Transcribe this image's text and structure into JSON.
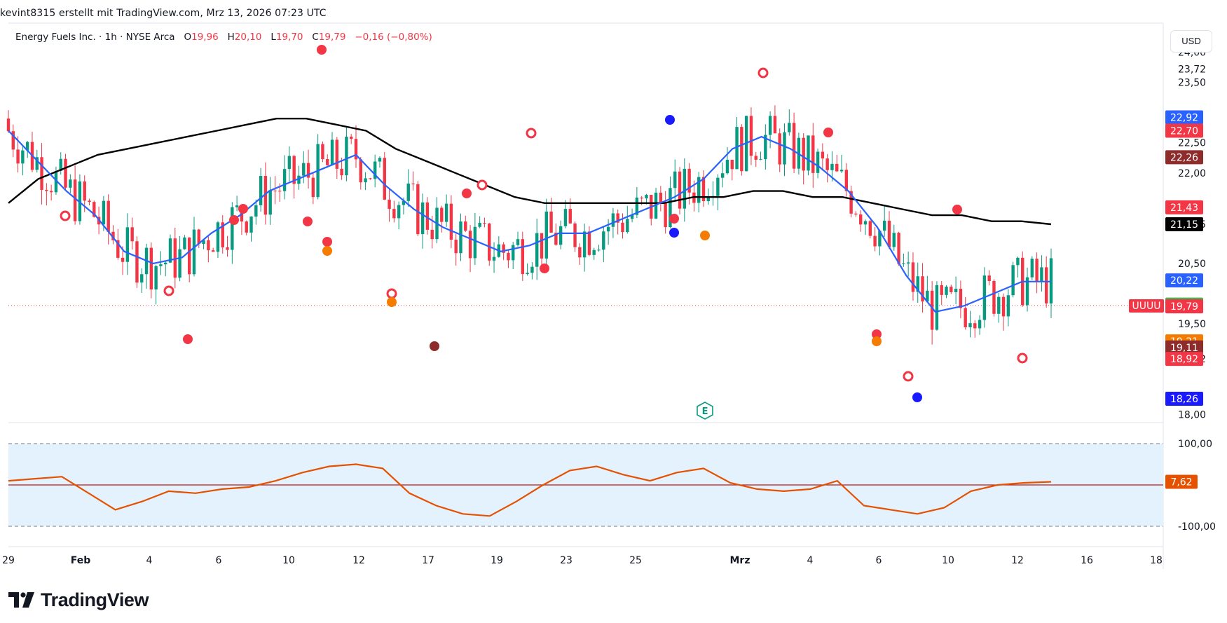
{
  "header": {
    "credit": "kevint8315 erstellt mit TradingView.com, Mrz 13, 2026 07:23 UTC"
  },
  "legend": {
    "symbol": "Energy Fuels Inc. · 1h · NYSE Arca",
    "o_label": "O",
    "o_value": "19,96",
    "h_label": "H",
    "h_value": "20,10",
    "l_label": "L",
    "l_value": "19,70",
    "c_label": "C",
    "c_value": "19,79",
    "change": "−0,16 (−0,80%)"
  },
  "currency": "USD",
  "brand": "TradingView",
  "ticker_tag": "UUUU",
  "colors": {
    "up": "#089981",
    "down": "#f23645",
    "ma_fast": "#2962ff",
    "ma_slow": "#000000",
    "osc_line": "#e65100",
    "osc_mid": "#b71c1c",
    "osc_band": "#e3f2fd"
  },
  "chart_data": [
    {
      "type": "candlestick",
      "title": "Energy Fuels Inc. · 1h · NYSE Arca",
      "y_ticks": [
        "24,00",
        "23,72",
        "23,50",
        "22,50",
        "22,00",
        "21,15",
        "20,50",
        "19,50",
        "18,92",
        "18,00"
      ],
      "ylim": [
        17.9,
        24.4
      ],
      "x_ticks": [
        "29",
        "Feb",
        "4",
        "6",
        "10",
        "12",
        "17",
        "19",
        "23",
        "25",
        "Mrz",
        "4",
        "6",
        "10",
        "12",
        "16",
        "18"
      ],
      "price_tags": [
        {
          "label": "22,92",
          "value": 22.92,
          "color": "#2962ff"
        },
        {
          "label": "22,70",
          "value": 22.7,
          "color": "#f23645"
        },
        {
          "label": "22,26",
          "value": 22.26,
          "color": "#8e2b2b"
        },
        {
          "label": "21,43",
          "value": 21.43,
          "color": "#f23645"
        },
        {
          "label": "21,15",
          "value": 21.15,
          "color": "#000000"
        },
        {
          "label": "20,22",
          "value": 20.22,
          "color": "#2962ff"
        },
        {
          "label": "19,82",
          "value": 19.82,
          "color": "#4caf50"
        },
        {
          "label": "19,79",
          "value": 19.79,
          "color": "#f23645"
        },
        {
          "label": "19,21",
          "value": 19.21,
          "color": "#f57c00"
        },
        {
          "label": "19,11",
          "value": 19.11,
          "color": "#8e2b2b"
        },
        {
          "label": "18,92",
          "value": 18.92,
          "color": "#f23645"
        },
        {
          "label": "18,26",
          "value": 18.26,
          "color": "#1a1aff"
        }
      ],
      "last_close": 19.79,
      "series": [
        {
          "name": "fast-ma",
          "values": [
            22.7,
            22.2,
            21.7,
            21.3,
            20.7,
            20.5,
            20.6,
            21.0,
            21.3,
            21.7,
            21.9,
            22.1,
            22.3,
            21.8,
            21.4,
            21.1,
            20.9,
            20.7,
            20.8,
            21.0,
            21.0,
            21.2,
            21.4,
            21.6,
            21.9,
            22.4,
            22.6,
            22.4,
            22.1,
            21.7,
            21.1,
            20.3,
            19.7,
            19.8,
            20.0,
            20.2,
            20.2
          ]
        },
        {
          "name": "slow-ma",
          "values": [
            21.5,
            21.9,
            22.1,
            22.3,
            22.4,
            22.5,
            22.6,
            22.7,
            22.8,
            22.9,
            22.9,
            22.8,
            22.7,
            22.4,
            22.2,
            22.0,
            21.8,
            21.6,
            21.5,
            21.5,
            21.5,
            21.5,
            21.5,
            21.6,
            21.6,
            21.7,
            21.7,
            21.6,
            21.6,
            21.5,
            21.4,
            21.3,
            21.3,
            21.2,
            21.2,
            21.15
          ]
        }
      ]
    },
    {
      "type": "line",
      "title": "",
      "y_ticks": [
        "100,00",
        "-100,00"
      ],
      "ylim": [
        -100,
        100
      ],
      "last_value_label": "7,62",
      "series": [
        {
          "name": "oscillator",
          "values": [
            10,
            15,
            20,
            -20,
            -60,
            -40,
            -15,
            -20,
            -10,
            -5,
            10,
            30,
            45,
            50,
            40,
            -20,
            -50,
            -70,
            -75,
            -40,
            0,
            35,
            45,
            25,
            10,
            30,
            40,
            5,
            -10,
            -15,
            -10,
            10,
            -50,
            -60,
            -70,
            -55,
            -15,
            0,
            5,
            7.62
          ]
        }
      ]
    }
  ]
}
